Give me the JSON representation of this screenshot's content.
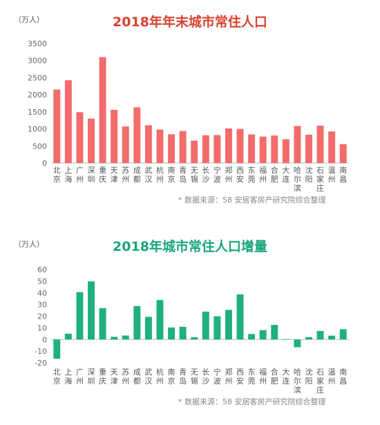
{
  "colors": {
    "bar1": "#F36B6B",
    "title1": "#D9412F",
    "bar2": "#1FB07F",
    "title2": "#18A57A"
  },
  "chart_data": [
    {
      "type": "bar",
      "title": "2018年年末城市常住人口",
      "unit": "（万人）",
      "ylim": [
        0,
        3500
      ],
      "yticks": [
        0,
        500,
        1000,
        1500,
        2000,
        2500,
        3000,
        3500
      ],
      "categories": [
        "北京",
        "上海",
        "广州",
        "深圳",
        "重庆",
        "天津",
        "苏州",
        "成都",
        "武汉",
        "杭州",
        "南京",
        "青岛",
        "无锡",
        "长沙",
        "宁波",
        "郑州",
        "西安",
        "东莞",
        "福州",
        "合肥",
        "大连",
        "哈尔滨",
        "沈阳",
        "石家庄",
        "温州",
        "南昌"
      ],
      "values": [
        2154,
        2424,
        1490,
        1303,
        3102,
        1560,
        1072,
        1633,
        1108,
        981,
        844,
        939,
        657,
        815,
        820,
        1014,
        1000,
        839,
        774,
        809,
        699,
        1086,
        831,
        1095,
        925,
        555
      ],
      "source": "* 数据来源：58 安居客房产研究院综合整理"
    },
    {
      "type": "bar",
      "title": "2018年城市常住人口增量",
      "unit": "（万人）",
      "ylim": [
        -20,
        60
      ],
      "yticks": [
        -20,
        -10,
        0,
        10,
        20,
        30,
        40,
        50,
        60
      ],
      "categories": [
        "北京",
        "上海",
        "广州",
        "深圳",
        "重庆",
        "天津",
        "苏州",
        "成都",
        "武汉",
        "杭州",
        "南京",
        "青岛",
        "无锡",
        "长沙",
        "宁波",
        "郑州",
        "西安",
        "东莞",
        "福州",
        "合肥",
        "大连",
        "哈尔滨",
        "沈阳",
        "石家庄",
        "温州",
        "南昌"
      ],
      "values": [
        -16.5,
        5,
        40.6,
        49.8,
        26.9,
        2.3,
        3.4,
        28.7,
        19.4,
        33.8,
        10.3,
        10.9,
        2,
        23.9,
        19.9,
        25.4,
        38.7,
        4.7,
        8,
        12.5,
        0.3,
        -6.7,
        2,
        7.3,
        3.3,
        8.8
      ],
      "source": "* 数据来源：58 安居客房产研究院综合整理"
    }
  ]
}
